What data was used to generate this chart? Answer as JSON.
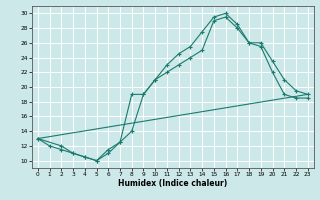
{
  "bg_color": "#cce8e8",
  "line_color": "#1a7a6e",
  "grid_color": "#ffffff",
  "xlabel": "Humidex (Indice chaleur)",
  "ylim": [
    9,
    31
  ],
  "xlim": [
    -0.5,
    23.5
  ],
  "yticks": [
    10,
    12,
    14,
    16,
    18,
    20,
    22,
    24,
    26,
    28,
    30
  ],
  "xticks": [
    0,
    1,
    2,
    3,
    4,
    5,
    6,
    7,
    8,
    9,
    10,
    11,
    12,
    13,
    14,
    15,
    16,
    17,
    18,
    19,
    20,
    21,
    22,
    23
  ],
  "line1_x": [
    0,
    1,
    2,
    3,
    4,
    5,
    6,
    7,
    8,
    9,
    10,
    11,
    12,
    13,
    14,
    15,
    16,
    17,
    18,
    19,
    20,
    21,
    22,
    23
  ],
  "line1_y": [
    13,
    12,
    11.5,
    11,
    10.5,
    10,
    11,
    12.5,
    14,
    19,
    21,
    23,
    24.5,
    25.5,
    27.5,
    29.5,
    30,
    28.5,
    26,
    26,
    23.5,
    21,
    19.5,
    19
  ],
  "line2_x": [
    0,
    2,
    3,
    4,
    5,
    6,
    7,
    8,
    9,
    10,
    11,
    12,
    13,
    14,
    15,
    16,
    17,
    18,
    19,
    20,
    21,
    22,
    23
  ],
  "line2_y": [
    13,
    12,
    11,
    10.5,
    10,
    11.5,
    12.5,
    19,
    19,
    21,
    22,
    23,
    24,
    25,
    29,
    29.5,
    28,
    26,
    25.5,
    22,
    19,
    18.5,
    18.5
  ],
  "line3_x": [
    0,
    23
  ],
  "line3_y": [
    13,
    19
  ],
  "title_fontsize": 6,
  "tick_fontsize": 4.2,
  "xlabel_fontsize": 5.5
}
